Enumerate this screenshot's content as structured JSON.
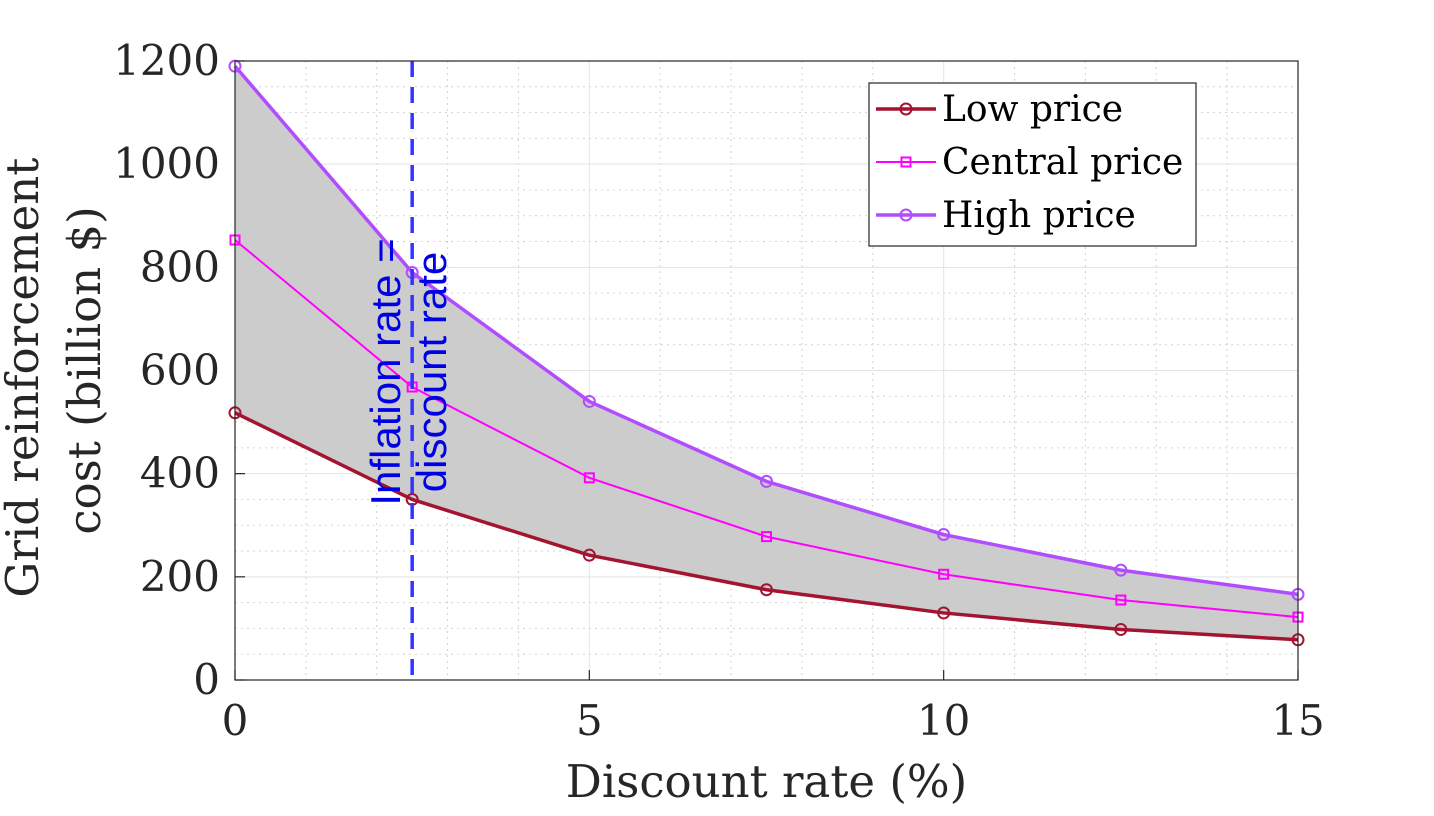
{
  "chart_data": {
    "type": "line",
    "title": "",
    "xlabel": "Discount rate (%)",
    "ylabel_lines": [
      "Grid reinforcement",
      "cost (billion $)"
    ],
    "xlim": [
      0,
      15
    ],
    "ylim": [
      0,
      1200
    ],
    "xticks": [
      0,
      5,
      10,
      15
    ],
    "yticks": [
      0,
      200,
      400,
      600,
      800,
      1000,
      1200
    ],
    "x": [
      0,
      2.5,
      5,
      7.5,
      10,
      12.5,
      15
    ],
    "grid": true,
    "minor_grid": true,
    "legend_position": "top-right",
    "band": {
      "between": [
        "Low price",
        "High price"
      ],
      "color": "#cccccc"
    },
    "series": [
      {
        "name": "Low price",
        "color": "#a2142f",
        "marker": "circle",
        "values": [
          518,
          350,
          242,
          175,
          130,
          98,
          78
        ]
      },
      {
        "name": "Central price",
        "color": "#ff00ff",
        "marker": "square",
        "values": [
          853,
          568,
          392,
          278,
          205,
          155,
          122
        ]
      },
      {
        "name": "High price",
        "color": "#b24cff",
        "marker": "circle",
        "values": [
          1190,
          790,
          540,
          385,
          282,
          213,
          166
        ]
      }
    ],
    "vline": {
      "x": 2.5,
      "color": "#3333ff",
      "label_lines": [
        "Inflation rate =",
        "discount rate"
      ]
    }
  }
}
